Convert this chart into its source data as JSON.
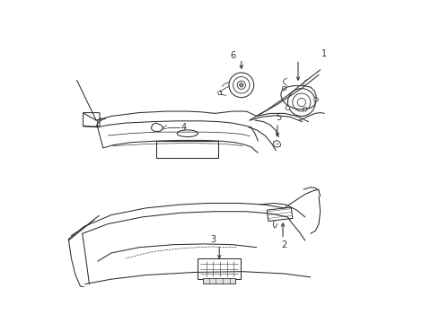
{
  "bg_color": "#ffffff",
  "lc": "#2d2d2d",
  "figsize": [
    4.9,
    3.6
  ],
  "dpi": 100,
  "lw": 0.75
}
